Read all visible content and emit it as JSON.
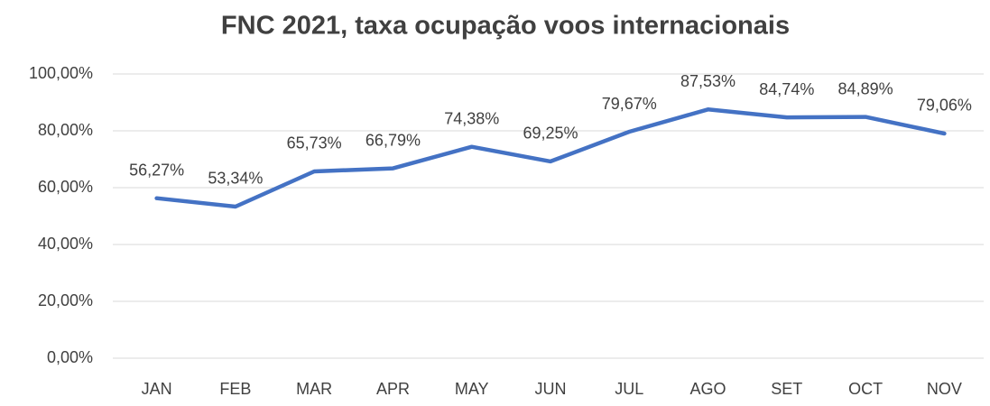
{
  "chart_data": {
    "type": "line",
    "title": "FNC 2021, taxa ocupação voos internacionais",
    "categories": [
      "JAN",
      "FEB",
      "MAR",
      "APR",
      "MAY",
      "JUN",
      "JUL",
      "AGO",
      "SET",
      "OCT",
      "NOV"
    ],
    "series": [
      {
        "name": "FNC 2021",
        "color": "#4472c4",
        "values": [
          56.27,
          53.34,
          65.73,
          66.79,
          74.38,
          69.25,
          79.67,
          87.53,
          84.74,
          84.89,
          79.06
        ],
        "value_labels": [
          "56,27%",
          "53,34%",
          "65,73%",
          "66,79%",
          "74,38%",
          "69,25%",
          "79,67%",
          "87,53%",
          "84,74%",
          "84,89%",
          "79,06%"
        ]
      }
    ],
    "ylim": [
      0,
      100
    ],
    "yticks": [
      {
        "value": 0,
        "label": "0,00%"
      },
      {
        "value": 20,
        "label": "20,00%"
      },
      {
        "value": 40,
        "label": "40,00%"
      },
      {
        "value": 60,
        "label": "60,00%"
      },
      {
        "value": 80,
        "label": "80,00%"
      },
      {
        "value": 100,
        "label": "100,00%"
      }
    ],
    "grid": true
  }
}
